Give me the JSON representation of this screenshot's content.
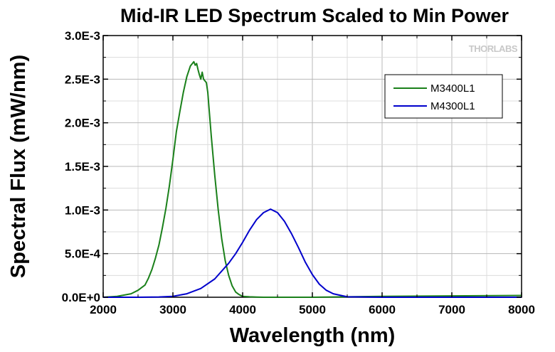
{
  "chart_data": {
    "type": "line",
    "title": "Mid-IR LED Spectrum Scaled to Min Power",
    "xlabel": "Wavelength (nm)",
    "ylabel": "Spectral Flux (mW/nm)",
    "xlim": [
      2000,
      8000
    ],
    "ylim": [
      0,
      0.003
    ],
    "x_ticks": [
      2000,
      3000,
      4000,
      5000,
      6000,
      7000,
      8000
    ],
    "x_tick_labels": [
      "2000",
      "3000",
      "4000",
      "5000",
      "6000",
      "7000",
      "8000"
    ],
    "y_ticks": [
      0,
      0.0005,
      0.001,
      0.0015,
      0.002,
      0.0025,
      0.003
    ],
    "y_tick_labels": [
      "0.0E+0",
      "5.0E-4",
      "1.0E-3",
      "1.5E-3",
      "2.0E-3",
      "2.5E-3",
      "3.0E-3"
    ],
    "grid": true,
    "legend_position": "top-right",
    "watermark": "THORLABS",
    "series": [
      {
        "name": "M3400L1",
        "color": "#1a801a",
        "x": [
          2000,
          2200,
          2400,
          2500,
          2600,
          2650,
          2700,
          2750,
          2800,
          2850,
          2900,
          2950,
          3000,
          3050,
          3100,
          3150,
          3200,
          3250,
          3300,
          3320,
          3340,
          3360,
          3380,
          3400,
          3420,
          3440,
          3460,
          3480,
          3500,
          3520,
          3550,
          3600,
          3650,
          3700,
          3750,
          3800,
          3850,
          3900,
          3950,
          4000,
          4100,
          4200,
          4300,
          4500,
          5000,
          6000,
          7000,
          8000
        ],
        "y": [
          0.0,
          1e-05,
          4e-05,
          8e-05,
          0.00014,
          0.00022,
          0.00032,
          0.00045,
          0.0006,
          0.0008,
          0.00102,
          0.00128,
          0.00158,
          0.0019,
          0.00213,
          0.00235,
          0.00253,
          0.00265,
          0.0027,
          0.00266,
          0.00268,
          0.00261,
          0.00255,
          0.0025,
          0.00258,
          0.0025,
          0.00248,
          0.00246,
          0.00235,
          0.00215,
          0.00185,
          0.0014,
          0.001,
          0.00067,
          0.00042,
          0.00025,
          0.00013,
          6e-05,
          3e-05,
          1e-05,
          5e-06,
          2e-06,
          0.0,
          0.0,
          0.0,
          1e-05,
          1.5e-05,
          2e-05
        ]
      },
      {
        "name": "M4300L1",
        "color": "#0000cc",
        "x": [
          2000,
          2500,
          2800,
          3000,
          3200,
          3400,
          3600,
          3800,
          3900,
          4000,
          4100,
          4200,
          4300,
          4400,
          4500,
          4600,
          4700,
          4800,
          4900,
          5000,
          5100,
          5200,
          5300,
          5500,
          6000,
          7000,
          8000
        ],
        "y": [
          0.0,
          0.0,
          3e-06,
          1e-05,
          4e-05,
          0.0001,
          0.00021,
          0.00039,
          0.0005,
          0.00063,
          0.00077,
          0.00089,
          0.00097,
          0.00101,
          0.00097,
          0.00087,
          0.00073,
          0.00057,
          0.0004,
          0.00026,
          0.00015,
          8e-05,
          4e-05,
          5e-06,
          0.0,
          0.0,
          0.0
        ]
      }
    ]
  }
}
